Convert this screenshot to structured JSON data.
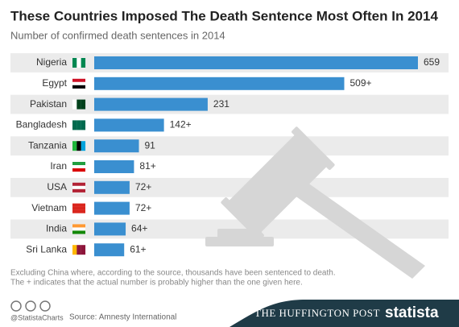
{
  "chart_data": {
    "type": "bar",
    "orientation": "horizontal",
    "title": "These Countries Imposed The Death Sentence Most Often In 2014",
    "subtitle": "Number of confirmed death sentences in 2014",
    "categories": [
      "Nigeria",
      "Egypt",
      "Pakistan",
      "Bangladesh",
      "Tanzania",
      "Iran",
      "USA",
      "Vietnam",
      "India",
      "Sri Lanka"
    ],
    "values": [
      659,
      509,
      231,
      142,
      91,
      81,
      72,
      72,
      64,
      61
    ],
    "value_labels": [
      "659",
      "509+",
      "231",
      "142+",
      "91",
      "81+",
      "72+",
      "72+",
      "64+",
      "61+"
    ],
    "color": "#3a8fd0",
    "notes": [
      "Excluding China where, according to the source, thousands have been sentenced to death.",
      "The + indicates that the actual number is probably higher than the one given here."
    ]
  },
  "footer": {
    "handle": "@StatistaCharts",
    "source": "Source: Amnesty International",
    "publisher": "THE HUFFINGTON POST",
    "brand": "statista"
  }
}
